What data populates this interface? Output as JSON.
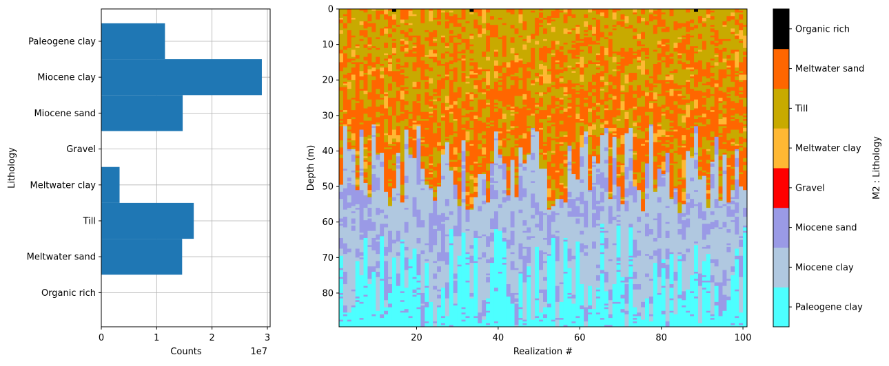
{
  "chart_data": [
    {
      "type": "bar",
      "orientation": "horizontal",
      "title": "",
      "ylabel": "Lithology",
      "xlabel": "Counts",
      "x_scale_label": "1e7",
      "xlim": [
        0,
        3.05
      ],
      "xticks": [
        0,
        1,
        2,
        3
      ],
      "xtick_labels": [
        "0",
        "1",
        "2",
        "3"
      ],
      "grid": true,
      "categories": [
        "Paleogene clay",
        "Miocene clay",
        "Miocene sand",
        "Gravel",
        "Meltwater clay",
        "Till",
        "Meltwater sand",
        "Organic rich"
      ],
      "values": [
        1.15,
        2.9,
        1.47,
        0,
        0.33,
        1.67,
        1.46,
        0
      ],
      "color": "#1f77b4"
    },
    {
      "type": "heatmap",
      "title": "",
      "xlabel": "Realization #",
      "ylabel": "Depth (m)",
      "xlim": [
        1,
        101
      ],
      "ylim": [
        89.5,
        0
      ],
      "xticks": [
        20,
        40,
        60,
        80,
        100
      ],
      "yticks": [
        0,
        10,
        20,
        30,
        40,
        50,
        60,
        70,
        80
      ],
      "n_realizations": 100,
      "depth_step": 0.5,
      "depth_max": 89.5,
      "layers_top_to_bottom": [
        "Meltwater sand",
        "Till",
        "Miocene clay",
        "Miocene sand",
        "Paleogene clay"
      ],
      "typical_boundaries_m": {
        "meltwater_till_mix_base": 45,
        "miocene_clay_base": 75
      },
      "organic_rich_spots_realization": [
        14,
        33,
        88
      ],
      "colorbar": {
        "label": "M2 : Lithology",
        "entries": [
          {
            "label": "Paleogene clay",
            "color": "#4dffff"
          },
          {
            "label": "Miocene clay",
            "color": "#b0c8e0"
          },
          {
            "label": "Miocene sand",
            "color": "#9a9ae6"
          },
          {
            "label": "Gravel",
            "color": "#ff0000"
          },
          {
            "label": "Meltwater clay",
            "color": "#ffb833"
          },
          {
            "label": "Till",
            "color": "#c8aa00"
          },
          {
            "label": "Meltwater sand",
            "color": "#ff6600"
          },
          {
            "label": "Organic rich",
            "color": "#000000"
          }
        ]
      }
    }
  ]
}
